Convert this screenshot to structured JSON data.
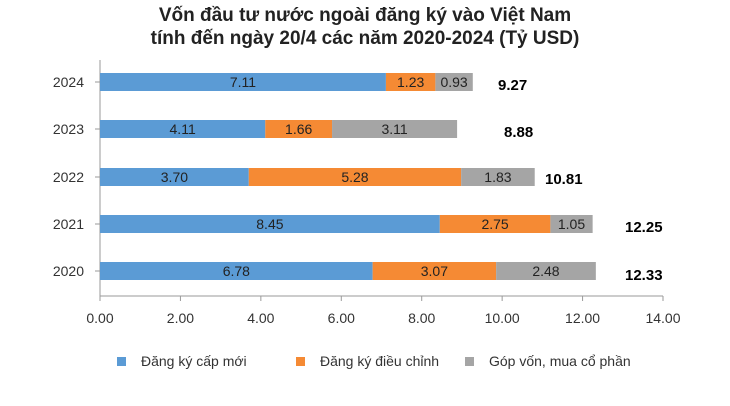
{
  "chart_data": {
    "type": "bar",
    "orientation": "horizontal",
    "stacked": true,
    "title": "Vốn đầu tư nước ngoài đăng ký vào Việt Nam",
    "subtitle": "tính đến ngày 20/4 các năm 2020-2024 (Tỷ USD)",
    "categories": [
      "2024",
      "2023",
      "2022",
      "2021",
      "2020"
    ],
    "series": [
      {
        "name": "Đăng ký cấp mới",
        "color": "#5b9bd5",
        "values": [
          7.11,
          4.11,
          3.7,
          8.45,
          6.78
        ],
        "labels": [
          "7.11",
          "4.11",
          "3.70",
          "8.45",
          "6.78"
        ]
      },
      {
        "name": "Đăng ký điều chỉnh",
        "color": "#f58a34",
        "values": [
          1.23,
          1.66,
          5.28,
          2.75,
          3.07
        ],
        "labels": [
          "1.23",
          "1.66",
          "5.28",
          "2.75",
          "3.07"
        ]
      },
      {
        "name": "Góp vốn, mua cổ phần",
        "color": "#a5a5a5",
        "values": [
          0.93,
          3.11,
          1.83,
          1.05,
          2.48
        ],
        "labels": [
          "0.93",
          "3.11",
          "1.83",
          "1.05",
          "2.48"
        ]
      }
    ],
    "totals": [
      "9.27",
      "8.88",
      "10.81",
      "12.25",
      "12.33"
    ],
    "xlim": [
      0,
      14
    ],
    "xticks": [
      "0.00",
      "2.00",
      "4.00",
      "6.00",
      "8.00",
      "10.00",
      "12.00",
      "14.00"
    ],
    "grid": false,
    "legend_position": "bottom"
  }
}
